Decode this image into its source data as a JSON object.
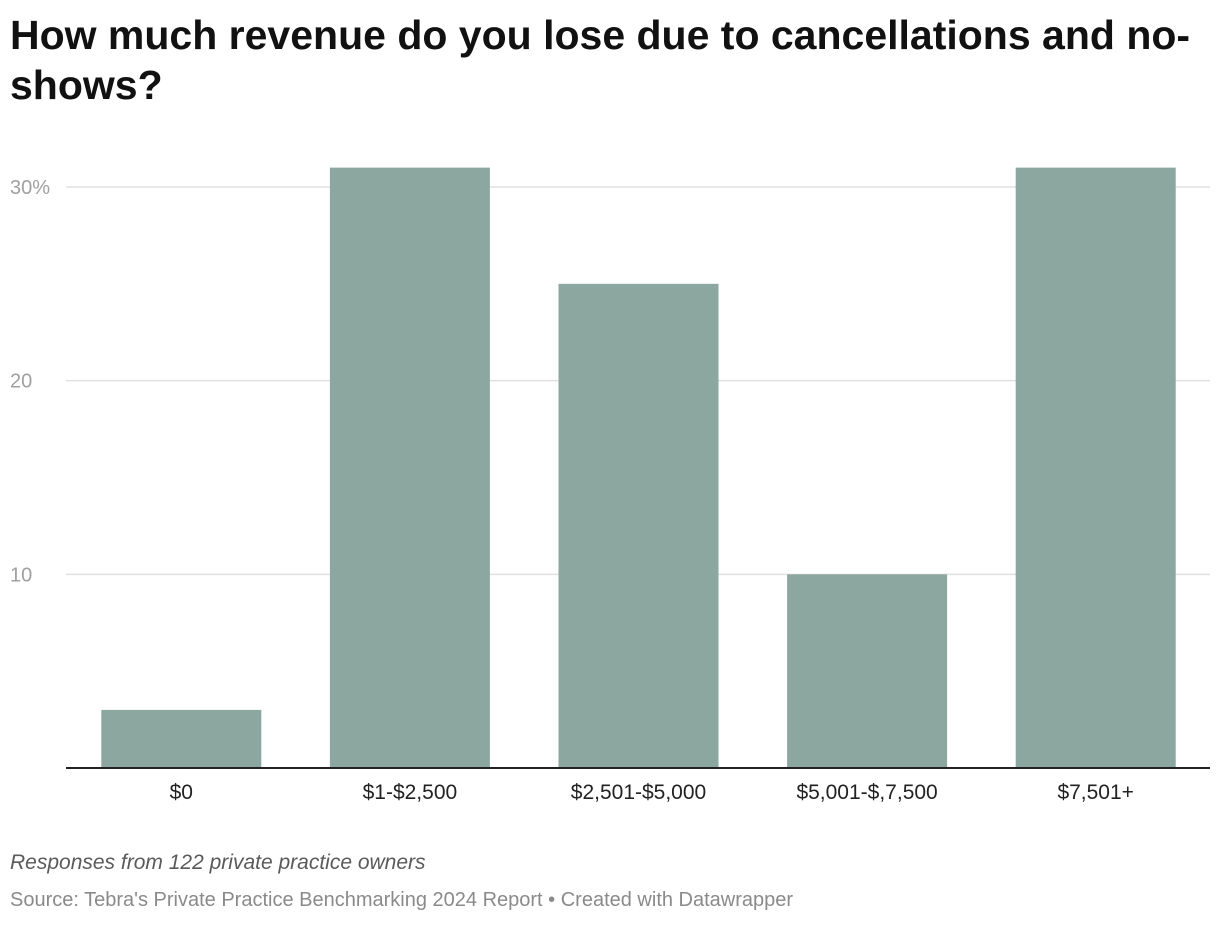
{
  "title": "How much revenue do you lose due to cancellations and no-shows?",
  "chart_data": {
    "type": "bar",
    "title": "How much revenue do you lose due to cancellations and no-shows?",
    "categories": [
      "$0",
      "$1-$2,500",
      "$2,501-$5,000",
      "$5,001-$,7,500",
      "$7,501+"
    ],
    "values": [
      3,
      31,
      25,
      10,
      31
    ],
    "unit": "%",
    "xlabel": "",
    "ylabel": "",
    "ylim": [
      0,
      30
    ],
    "yticks": [
      {
        "value": 10,
        "label": "10"
      },
      {
        "value": 20,
        "label": "20"
      },
      {
        "value": 30,
        "label": "30%"
      }
    ],
    "grid": true,
    "bar_color": "#8ca6a0",
    "legend": "none"
  },
  "note": "Responses from 122 private practice owners",
  "source": "Source: Tebra's Private Practice Benchmarking 2024 Report • Created with Datawrapper",
  "colors": {
    "bar": "#8ca6a0",
    "grid": "#e0e0e0",
    "axis": "#222222",
    "tick_label": "#a0a0a0"
  }
}
